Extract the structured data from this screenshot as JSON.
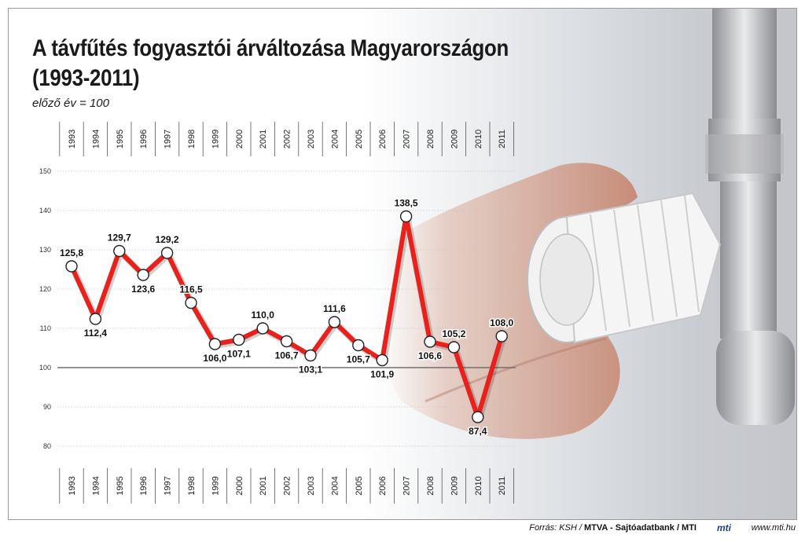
{
  "title_line1": "A távfűtés fogyasztói árváltozása Magyarországon",
  "title_line2": "(1993-2011)",
  "subtitle": "előző év = 100",
  "chart_data": {
    "type": "line",
    "title": "A távfűtés fogyasztói árváltozása Magyarországon (1993-2011)",
    "subtitle": "előző év = 100",
    "x": [
      "1993",
      "1994",
      "1995",
      "1996",
      "1997",
      "1998",
      "1999",
      "2000",
      "2001",
      "2002",
      "2003",
      "2004",
      "2005",
      "2006",
      "2007",
      "2008",
      "2009",
      "2010",
      "2011"
    ],
    "values": [
      125.8,
      112.4,
      129.7,
      123.6,
      129.2,
      116.5,
      106.0,
      107.1,
      110.0,
      106.7,
      103.1,
      111.6,
      105.7,
      101.9,
      138.5,
      106.6,
      105.2,
      87.4,
      108.0
    ],
    "value_labels": [
      "125,8",
      "112,4",
      "129,7",
      "123,6",
      "129,2",
      "116,5",
      "106,0",
      "107,1",
      "110,0",
      "106,7",
      "103,1",
      "111,6",
      "105,7",
      "101,9",
      "138,5",
      "106,6",
      "105,2",
      "87,4",
      "108,0"
    ],
    "label_position": [
      "above",
      "below",
      "above",
      "below",
      "above",
      "above",
      "below",
      "below",
      "above",
      "below",
      "below",
      "above",
      "below",
      "below",
      "above",
      "below",
      "above",
      "below",
      "above"
    ],
    "yticks": [
      80,
      90,
      100,
      110,
      120,
      130,
      140,
      150
    ],
    "ylim": [
      80,
      150
    ],
    "reference_line": 100,
    "grid": true,
    "line_color": "#e8211c",
    "marker_color": "#ffffff"
  },
  "footer": {
    "source_prefix": "Forrás: KSH /",
    "source_bold": "MTVA - Sajtóadatbank / MTI",
    "logo": "mti",
    "url": "www.mti.hu"
  }
}
